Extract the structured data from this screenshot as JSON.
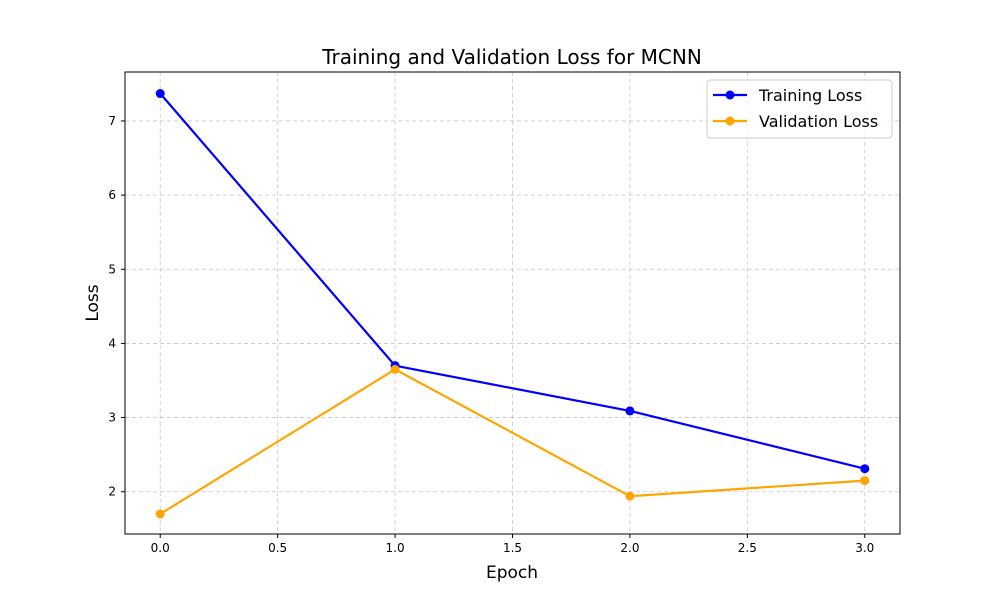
{
  "chart_data": {
    "type": "line",
    "title": "Training and Validation Loss for MCNN",
    "xlabel": "Epoch",
    "ylabel": "Loss",
    "x": [
      0,
      1,
      2,
      3
    ],
    "xlim": [
      -0.15,
      3.15
    ],
    "ylim": [
      1.43,
      7.66
    ],
    "xticks": [
      0.0,
      0.5,
      1.0,
      1.5,
      2.0,
      2.5,
      3.0
    ],
    "xtick_labels": [
      "0.0",
      "0.5",
      "1.0",
      "1.5",
      "2.0",
      "2.5",
      "3.0"
    ],
    "yticks": [
      2,
      3,
      4,
      5,
      6,
      7
    ],
    "ytick_labels": [
      "2",
      "3",
      "4",
      "5",
      "6",
      "7"
    ],
    "grid": true,
    "legend_position": "top-right",
    "series": [
      {
        "name": "Training Loss",
        "color": "#0000ff",
        "marker": "circle",
        "values": [
          7.37,
          3.7,
          3.09,
          2.31
        ]
      },
      {
        "name": "Validation Loss",
        "color": "#ffa500",
        "marker": "circle",
        "values": [
          1.7,
          3.65,
          1.94,
          2.15
        ]
      }
    ]
  }
}
